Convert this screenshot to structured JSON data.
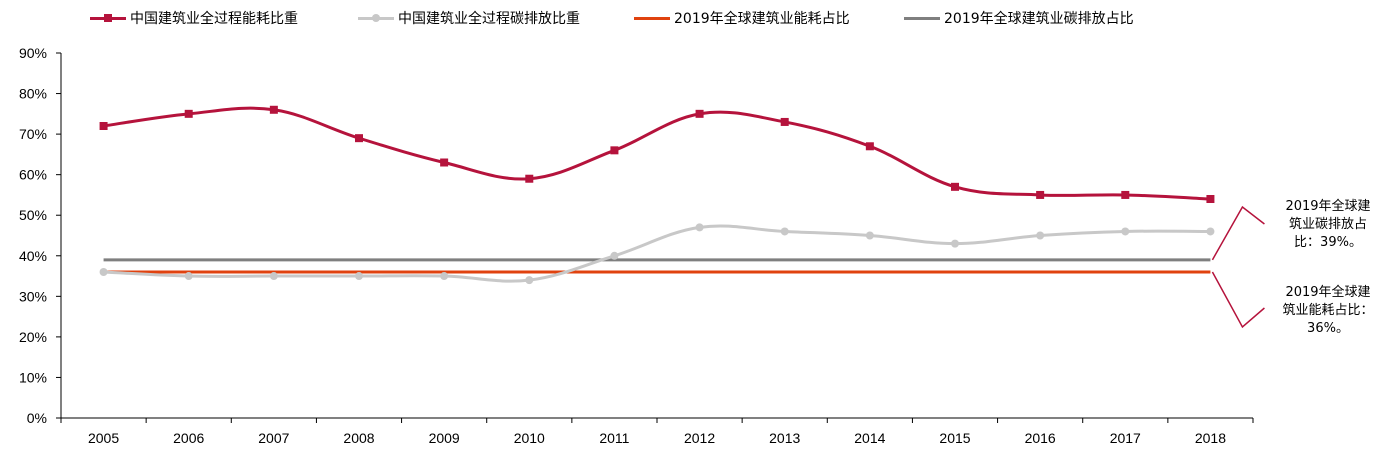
{
  "chart_data": {
    "type": "line",
    "title": "",
    "xlabel": "",
    "ylabel": "",
    "ylim": [
      0,
      90
    ],
    "y_tick_labels": [
      "0%",
      "10%",
      "20%",
      "30%",
      "40%",
      "50%",
      "60%",
      "70%",
      "80%",
      "90%"
    ],
    "categories": [
      "2005",
      "2006",
      "2007",
      "2008",
      "2009",
      "2010",
      "2011",
      "2012",
      "2013",
      "2014",
      "2015",
      "2016",
      "2017",
      "2018"
    ],
    "series": [
      {
        "name": "中国建筑业全过程能耗比重",
        "color": "#b5133c",
        "marker": "square",
        "values": [
          72,
          75,
          76,
          69,
          63,
          59,
          66,
          75,
          73,
          67,
          57,
          55,
          55,
          54
        ]
      },
      {
        "name": "中国建筑业全过程碳排放比重",
        "color": "#c8c8c8",
        "marker": "circle",
        "values": [
          36,
          35,
          35,
          35,
          35,
          34,
          40,
          47,
          46,
          45,
          43,
          45,
          46,
          46
        ]
      },
      {
        "name": "2019年全球建筑业能耗占比",
        "color": "#e0420f",
        "marker": "none",
        "values": [
          36,
          36,
          36,
          36,
          36,
          36,
          36,
          36,
          36,
          36,
          36,
          36,
          36,
          36
        ]
      },
      {
        "name": "2019年全球建筑业碳排放占比",
        "color": "#7f7f7f",
        "marker": "none",
        "values": [
          39,
          39,
          39,
          39,
          39,
          39,
          39,
          39,
          39,
          39,
          39,
          39,
          39,
          39
        ]
      }
    ],
    "annotations": [
      {
        "text": "2019年全球建\n筑业碳排放占\n比：39%。",
        "value": 39,
        "color": "#b5133c"
      },
      {
        "text": "2019年全球建\n筑业能耗占比：\n36%。",
        "value": 36,
        "color": "#b5133c"
      }
    ],
    "grid": false,
    "legend_position": "top"
  }
}
